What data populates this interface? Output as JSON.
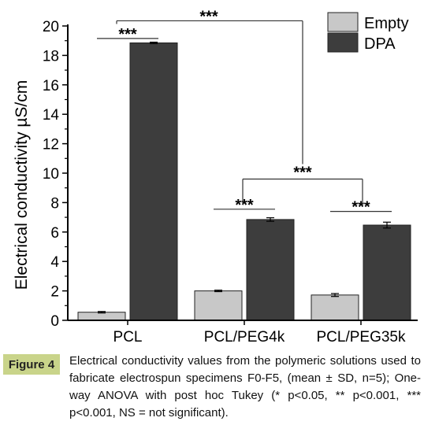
{
  "chart_data": {
    "type": "bar",
    "categories": [
      "PCL",
      "PCL/PEG4k",
      "PCL/PEG35k"
    ],
    "series": [
      {
        "name": "Empty",
        "values": [
          0.55,
          2.0,
          1.72
        ],
        "errors": [
          0.05,
          0.05,
          0.1
        ],
        "color": "#c8c8c8"
      },
      {
        "name": "DPA",
        "values": [
          18.85,
          6.85,
          6.47
        ],
        "errors": [
          0.05,
          0.12,
          0.2
        ],
        "color": "#3d3d3d"
      }
    ],
    "ylabel": "Electrical conductivity µS/cm",
    "xlabel": "",
    "ylim": [
      0,
      20
    ],
    "yticks": [
      0,
      2,
      4,
      6,
      8,
      10,
      12,
      14,
      16,
      18,
      20
    ],
    "legend_position": "top-right",
    "significance": {
      "pcl_pair": "***",
      "peg4k_pair": "***",
      "peg35k_pair": "***",
      "peg4k_vs_peg35k": "***",
      "pcl_vs_peg": "***"
    }
  },
  "caption": {
    "label": "Figure 4",
    "text": "Electrical conductivity values from the polymeric solutions used to fabricate electrospun specimens F0-F5, (mean ± SD, n=5); One-way ANOVA with post hoc Tukey (* p<0.05, ** p<0.001, *** p<0.001, NS = not significant)."
  }
}
